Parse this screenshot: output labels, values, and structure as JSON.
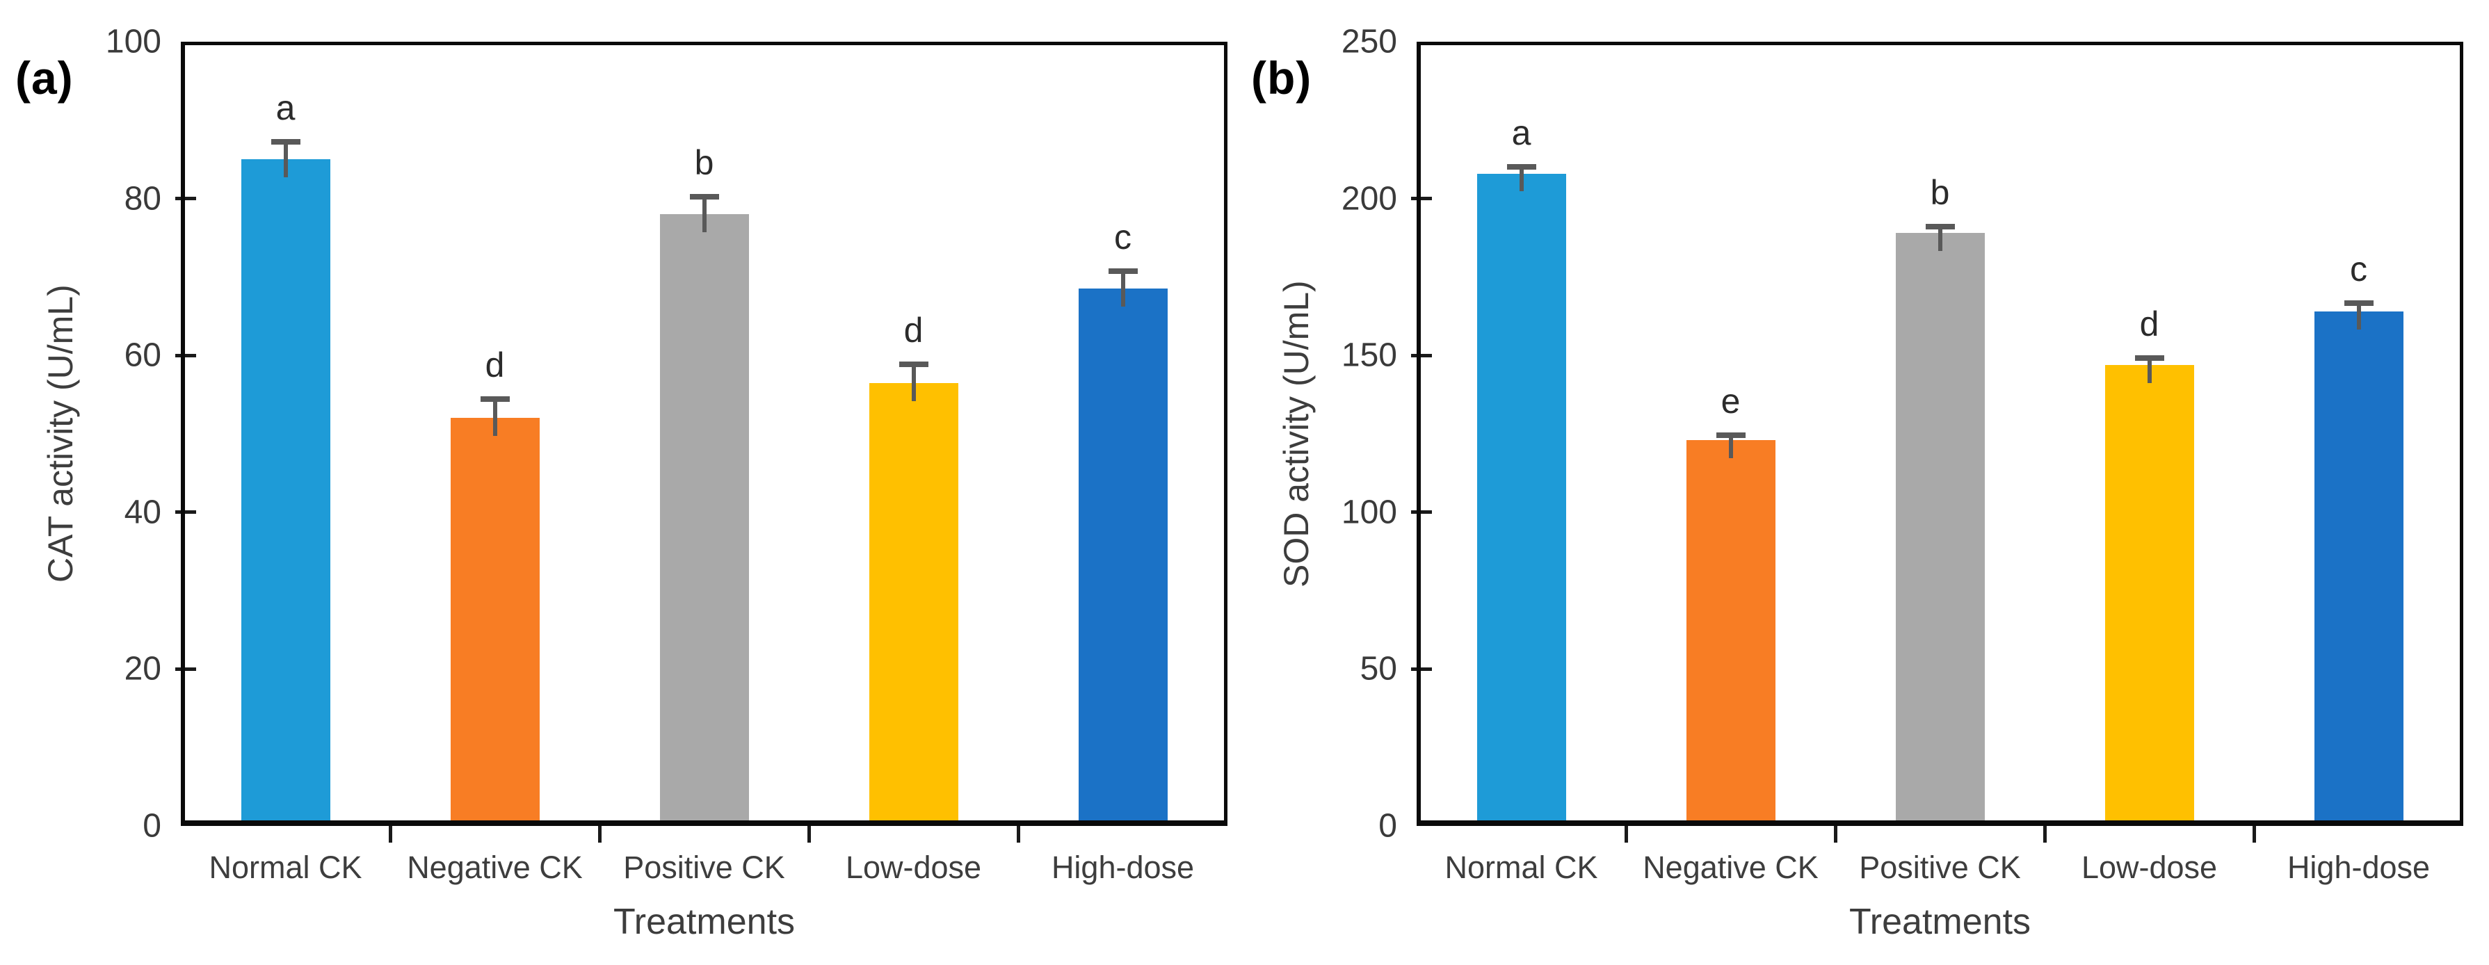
{
  "figure": {
    "background": "#ffffff",
    "description_visible_text_only": true
  },
  "style": {
    "axis_color": "#0a0a0a",
    "error_bar_color": "#595959",
    "tick_label_color": "#3a3a3a",
    "letter_color": "#2b2b2b"
  },
  "chart_data": [
    {
      "type": "bar",
      "panel_label": "(a)",
      "ylabel": "CAT activity (U/mL)",
      "xlabel": "Treatments",
      "categories": [
        "Normal CK",
        "Negative CK",
        "Positive CK",
        "Low-dose",
        "High-dose"
      ],
      "values": [
        85,
        52,
        78,
        56.5,
        68.5
      ],
      "errors": [
        2.6,
        2.8,
        2.6,
        2.7,
        2.6
      ],
      "sig_letters": [
        "a",
        "d",
        "b",
        "d",
        "c"
      ],
      "bar_colors": [
        "#1E9BD7",
        "#F87D24",
        "#A9A9A9",
        "#FFC000",
        "#1B72C6"
      ],
      "ylim": [
        0,
        100
      ],
      "yticks": [
        0,
        20,
        40,
        60,
        80,
        100
      ],
      "grid": "off",
      "legend": "none"
    },
    {
      "type": "bar",
      "panel_label": "(b)",
      "ylabel": "SOD activity (U/mL)",
      "xlabel": "Treatments",
      "categories": [
        "Normal CK",
        "Negative CK",
        "Positive CK",
        "Low-dose",
        "High-dose"
      ],
      "values": [
        208,
        123,
        189,
        147,
        164
      ],
      "errors": [
        3,
        2.5,
        3,
        3,
        3.5
      ],
      "sig_letters": [
        "a",
        "e",
        "b",
        "d",
        "c"
      ],
      "bar_colors": [
        "#1E9BD7",
        "#F87D24",
        "#A9A9A9",
        "#FFC000",
        "#1B72C6"
      ],
      "ylim": [
        0,
        250
      ],
      "yticks": [
        0,
        50,
        100,
        150,
        200,
        250
      ],
      "grid": "off",
      "legend": "none"
    }
  ]
}
